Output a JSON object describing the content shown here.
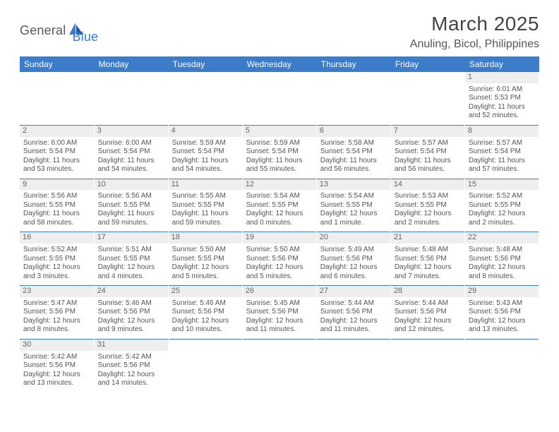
{
  "logo": {
    "part1": "General",
    "part2": "Blue"
  },
  "title": "March 2025",
  "location": "Anuling, Bicol, Philippines",
  "colors": {
    "header_blue": "#3d7cc9",
    "daynum_bg": "#eeeeee",
    "text": "#555555",
    "bg": "#ffffff"
  },
  "week_header": [
    "Sunday",
    "Monday",
    "Tuesday",
    "Wednesday",
    "Thursday",
    "Friday",
    "Saturday"
  ],
  "days": {
    "1": {
      "sunrise": "6:01 AM",
      "sunset": "5:53 PM",
      "daylight": "11 hours and 52 minutes."
    },
    "2": {
      "sunrise": "6:00 AM",
      "sunset": "5:54 PM",
      "daylight": "11 hours and 53 minutes."
    },
    "3": {
      "sunrise": "6:00 AM",
      "sunset": "5:54 PM",
      "daylight": "11 hours and 54 minutes."
    },
    "4": {
      "sunrise": "5:59 AM",
      "sunset": "5:54 PM",
      "daylight": "11 hours and 54 minutes."
    },
    "5": {
      "sunrise": "5:59 AM",
      "sunset": "5:54 PM",
      "daylight": "11 hours and 55 minutes."
    },
    "6": {
      "sunrise": "5:58 AM",
      "sunset": "5:54 PM",
      "daylight": "11 hours and 56 minutes."
    },
    "7": {
      "sunrise": "5:57 AM",
      "sunset": "5:54 PM",
      "daylight": "11 hours and 56 minutes."
    },
    "8": {
      "sunrise": "5:57 AM",
      "sunset": "5:54 PM",
      "daylight": "11 hours and 57 minutes."
    },
    "9": {
      "sunrise": "5:56 AM",
      "sunset": "5:55 PM",
      "daylight": "11 hours and 58 minutes."
    },
    "10": {
      "sunrise": "5:56 AM",
      "sunset": "5:55 PM",
      "daylight": "11 hours and 59 minutes."
    },
    "11": {
      "sunrise": "5:55 AM",
      "sunset": "5:55 PM",
      "daylight": "11 hours and 59 minutes."
    },
    "12": {
      "sunrise": "5:54 AM",
      "sunset": "5:55 PM",
      "daylight": "12 hours and 0 minutes."
    },
    "13": {
      "sunrise": "5:54 AM",
      "sunset": "5:55 PM",
      "daylight": "12 hours and 1 minute."
    },
    "14": {
      "sunrise": "5:53 AM",
      "sunset": "5:55 PM",
      "daylight": "12 hours and 2 minutes."
    },
    "15": {
      "sunrise": "5:52 AM",
      "sunset": "5:55 PM",
      "daylight": "12 hours and 2 minutes."
    },
    "16": {
      "sunrise": "5:52 AM",
      "sunset": "5:55 PM",
      "daylight": "12 hours and 3 minutes."
    },
    "17": {
      "sunrise": "5:51 AM",
      "sunset": "5:55 PM",
      "daylight": "12 hours and 4 minutes."
    },
    "18": {
      "sunrise": "5:50 AM",
      "sunset": "5:55 PM",
      "daylight": "12 hours and 5 minutes."
    },
    "19": {
      "sunrise": "5:50 AM",
      "sunset": "5:56 PM",
      "daylight": "12 hours and 5 minutes."
    },
    "20": {
      "sunrise": "5:49 AM",
      "sunset": "5:56 PM",
      "daylight": "12 hours and 6 minutes."
    },
    "21": {
      "sunrise": "5:48 AM",
      "sunset": "5:56 PM",
      "daylight": "12 hours and 7 minutes."
    },
    "22": {
      "sunrise": "5:48 AM",
      "sunset": "5:56 PM",
      "daylight": "12 hours and 8 minutes."
    },
    "23": {
      "sunrise": "5:47 AM",
      "sunset": "5:56 PM",
      "daylight": "12 hours and 8 minutes."
    },
    "24": {
      "sunrise": "5:46 AM",
      "sunset": "5:56 PM",
      "daylight": "12 hours and 9 minutes."
    },
    "25": {
      "sunrise": "5:46 AM",
      "sunset": "5:56 PM",
      "daylight": "12 hours and 10 minutes."
    },
    "26": {
      "sunrise": "5:45 AM",
      "sunset": "5:56 PM",
      "daylight": "12 hours and 11 minutes."
    },
    "27": {
      "sunrise": "5:44 AM",
      "sunset": "5:56 PM",
      "daylight": "12 hours and 11 minutes."
    },
    "28": {
      "sunrise": "5:44 AM",
      "sunset": "5:56 PM",
      "daylight": "12 hours and 12 minutes."
    },
    "29": {
      "sunrise": "5:43 AM",
      "sunset": "5:56 PM",
      "daylight": "12 hours and 13 minutes."
    },
    "30": {
      "sunrise": "5:42 AM",
      "sunset": "5:56 PM",
      "daylight": "12 hours and 13 minutes."
    },
    "31": {
      "sunrise": "5:42 AM",
      "sunset": "5:56 PM",
      "daylight": "12 hours and 14 minutes."
    }
  },
  "labels": {
    "sunrise": "Sunrise: ",
    "sunset": "Sunset: ",
    "daylight": "Daylight: "
  },
  "weeks": [
    [
      null,
      null,
      null,
      null,
      null,
      null,
      "1"
    ],
    [
      "2",
      "3",
      "4",
      "5",
      "6",
      "7",
      "8"
    ],
    [
      "9",
      "10",
      "11",
      "12",
      "13",
      "14",
      "15"
    ],
    [
      "16",
      "17",
      "18",
      "19",
      "20",
      "21",
      "22"
    ],
    [
      "23",
      "24",
      "25",
      "26",
      "27",
      "28",
      "29"
    ],
    [
      "30",
      "31",
      null,
      null,
      null,
      null,
      null
    ]
  ]
}
